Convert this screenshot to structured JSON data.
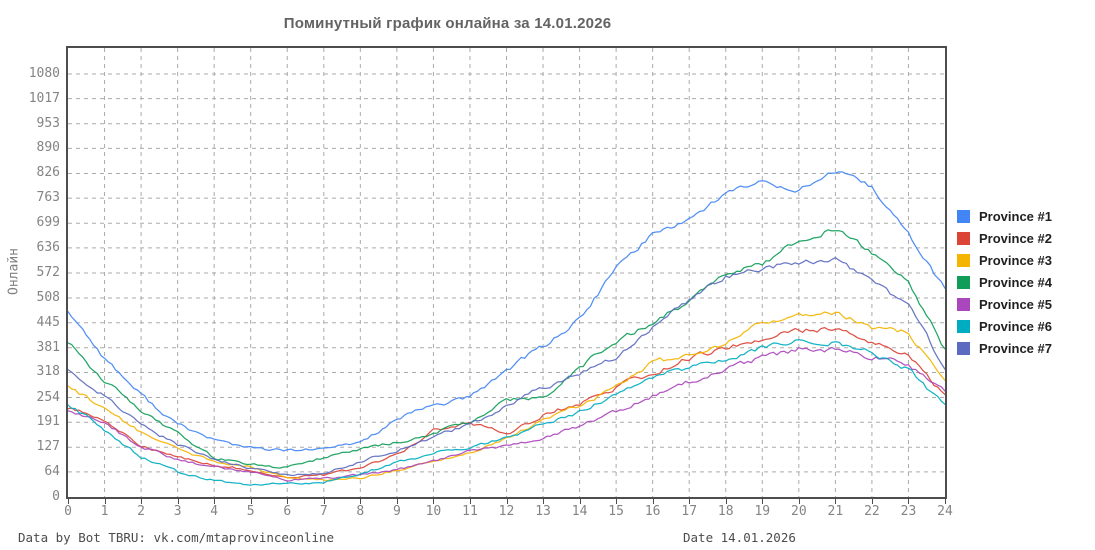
{
  "title": "Поминутный график онлайна за 14.01.2026",
  "footer": {
    "credit": "Data by Bot TBRU: vk.com/mtaprovinceonline",
    "date": "Date 14.01.2026"
  },
  "chart_data": {
    "type": "line",
    "title": "Поминутный график онлайна за 14.01.2026",
    "xlabel": "",
    "ylabel": "Онлайн",
    "legend_position": "right",
    "grid": true,
    "grid_style": "dashed",
    "xlim": [
      0,
      24
    ],
    "ylim": [
      0,
      1146
    ],
    "x_ticks": [
      0,
      1,
      2,
      3,
      4,
      5,
      6,
      7,
      8,
      9,
      10,
      11,
      12,
      13,
      14,
      15,
      16,
      17,
      18,
      19,
      20,
      21,
      22,
      23,
      24
    ],
    "y_ticks": [
      0,
      64,
      127,
      191,
      254,
      318,
      381,
      445,
      508,
      572,
      636,
      699,
      763,
      826,
      890,
      953,
      1017,
      1080
    ],
    "x": [
      0,
      1,
      2,
      3,
      4,
      5,
      6,
      7,
      8,
      9,
      10,
      11,
      12,
      13,
      14,
      15,
      16,
      17,
      18,
      19,
      20,
      21,
      22,
      23,
      24
    ],
    "series": [
      {
        "name": "Province #1",
        "color": "#4285F4",
        "values": [
          476,
          355,
          260,
          185,
          146,
          125,
          118,
          122,
          140,
          197,
          235,
          253,
          325,
          385,
          452,
          585,
          672,
          710,
          776,
          805,
          785,
          830,
          790,
          670,
          530
        ]
      },
      {
        "name": "Province #2",
        "color": "#DB4437",
        "values": [
          230,
          197,
          133,
          102,
          82,
          69,
          51,
          56,
          74,
          107,
          170,
          190,
          160,
          209,
          240,
          281,
          317,
          355,
          380,
          405,
          425,
          430,
          390,
          370,
          255
        ]
      },
      {
        "name": "Province #3",
        "color": "#F4B400",
        "values": [
          281,
          225,
          166,
          120,
          89,
          77,
          48,
          43,
          48,
          69,
          94,
          112,
          151,
          197,
          235,
          278,
          342,
          363,
          388,
          450,
          465,
          470,
          434,
          420,
          300
        ]
      },
      {
        "name": "Province #4",
        "color": "#0F9D58",
        "values": [
          393,
          300,
          222,
          163,
          100,
          82,
          74,
          100,
          120,
          140,
          163,
          189,
          246,
          253,
          332,
          400,
          445,
          500,
          570,
          597,
          655,
          687,
          623,
          554,
          375
        ]
      },
      {
        "name": "Province #5",
        "color": "#AB47BC",
        "values": [
          222,
          189,
          128,
          94,
          77,
          64,
          43,
          48,
          56,
          69,
          89,
          120,
          130,
          153,
          179,
          217,
          260,
          294,
          324,
          357,
          378,
          375,
          357,
          340,
          268
        ]
      },
      {
        "name": "Province #6",
        "color": "#00ACC1",
        "values": [
          240,
          171,
          102,
          64,
          43,
          31,
          36,
          38,
          61,
          87,
          112,
          128,
          150,
          189,
          217,
          266,
          304,
          332,
          350,
          383,
          400,
          395,
          370,
          325,
          230
        ]
      },
      {
        "name": "Province #7",
        "color": "#5C6BC0",
        "values": [
          322,
          255,
          184,
          133,
          94,
          74,
          56,
          61,
          89,
          120,
          151,
          189,
          230,
          281,
          317,
          357,
          434,
          503,
          562,
          585,
          600,
          605,
          554,
          485,
          330
        ]
      }
    ]
  }
}
